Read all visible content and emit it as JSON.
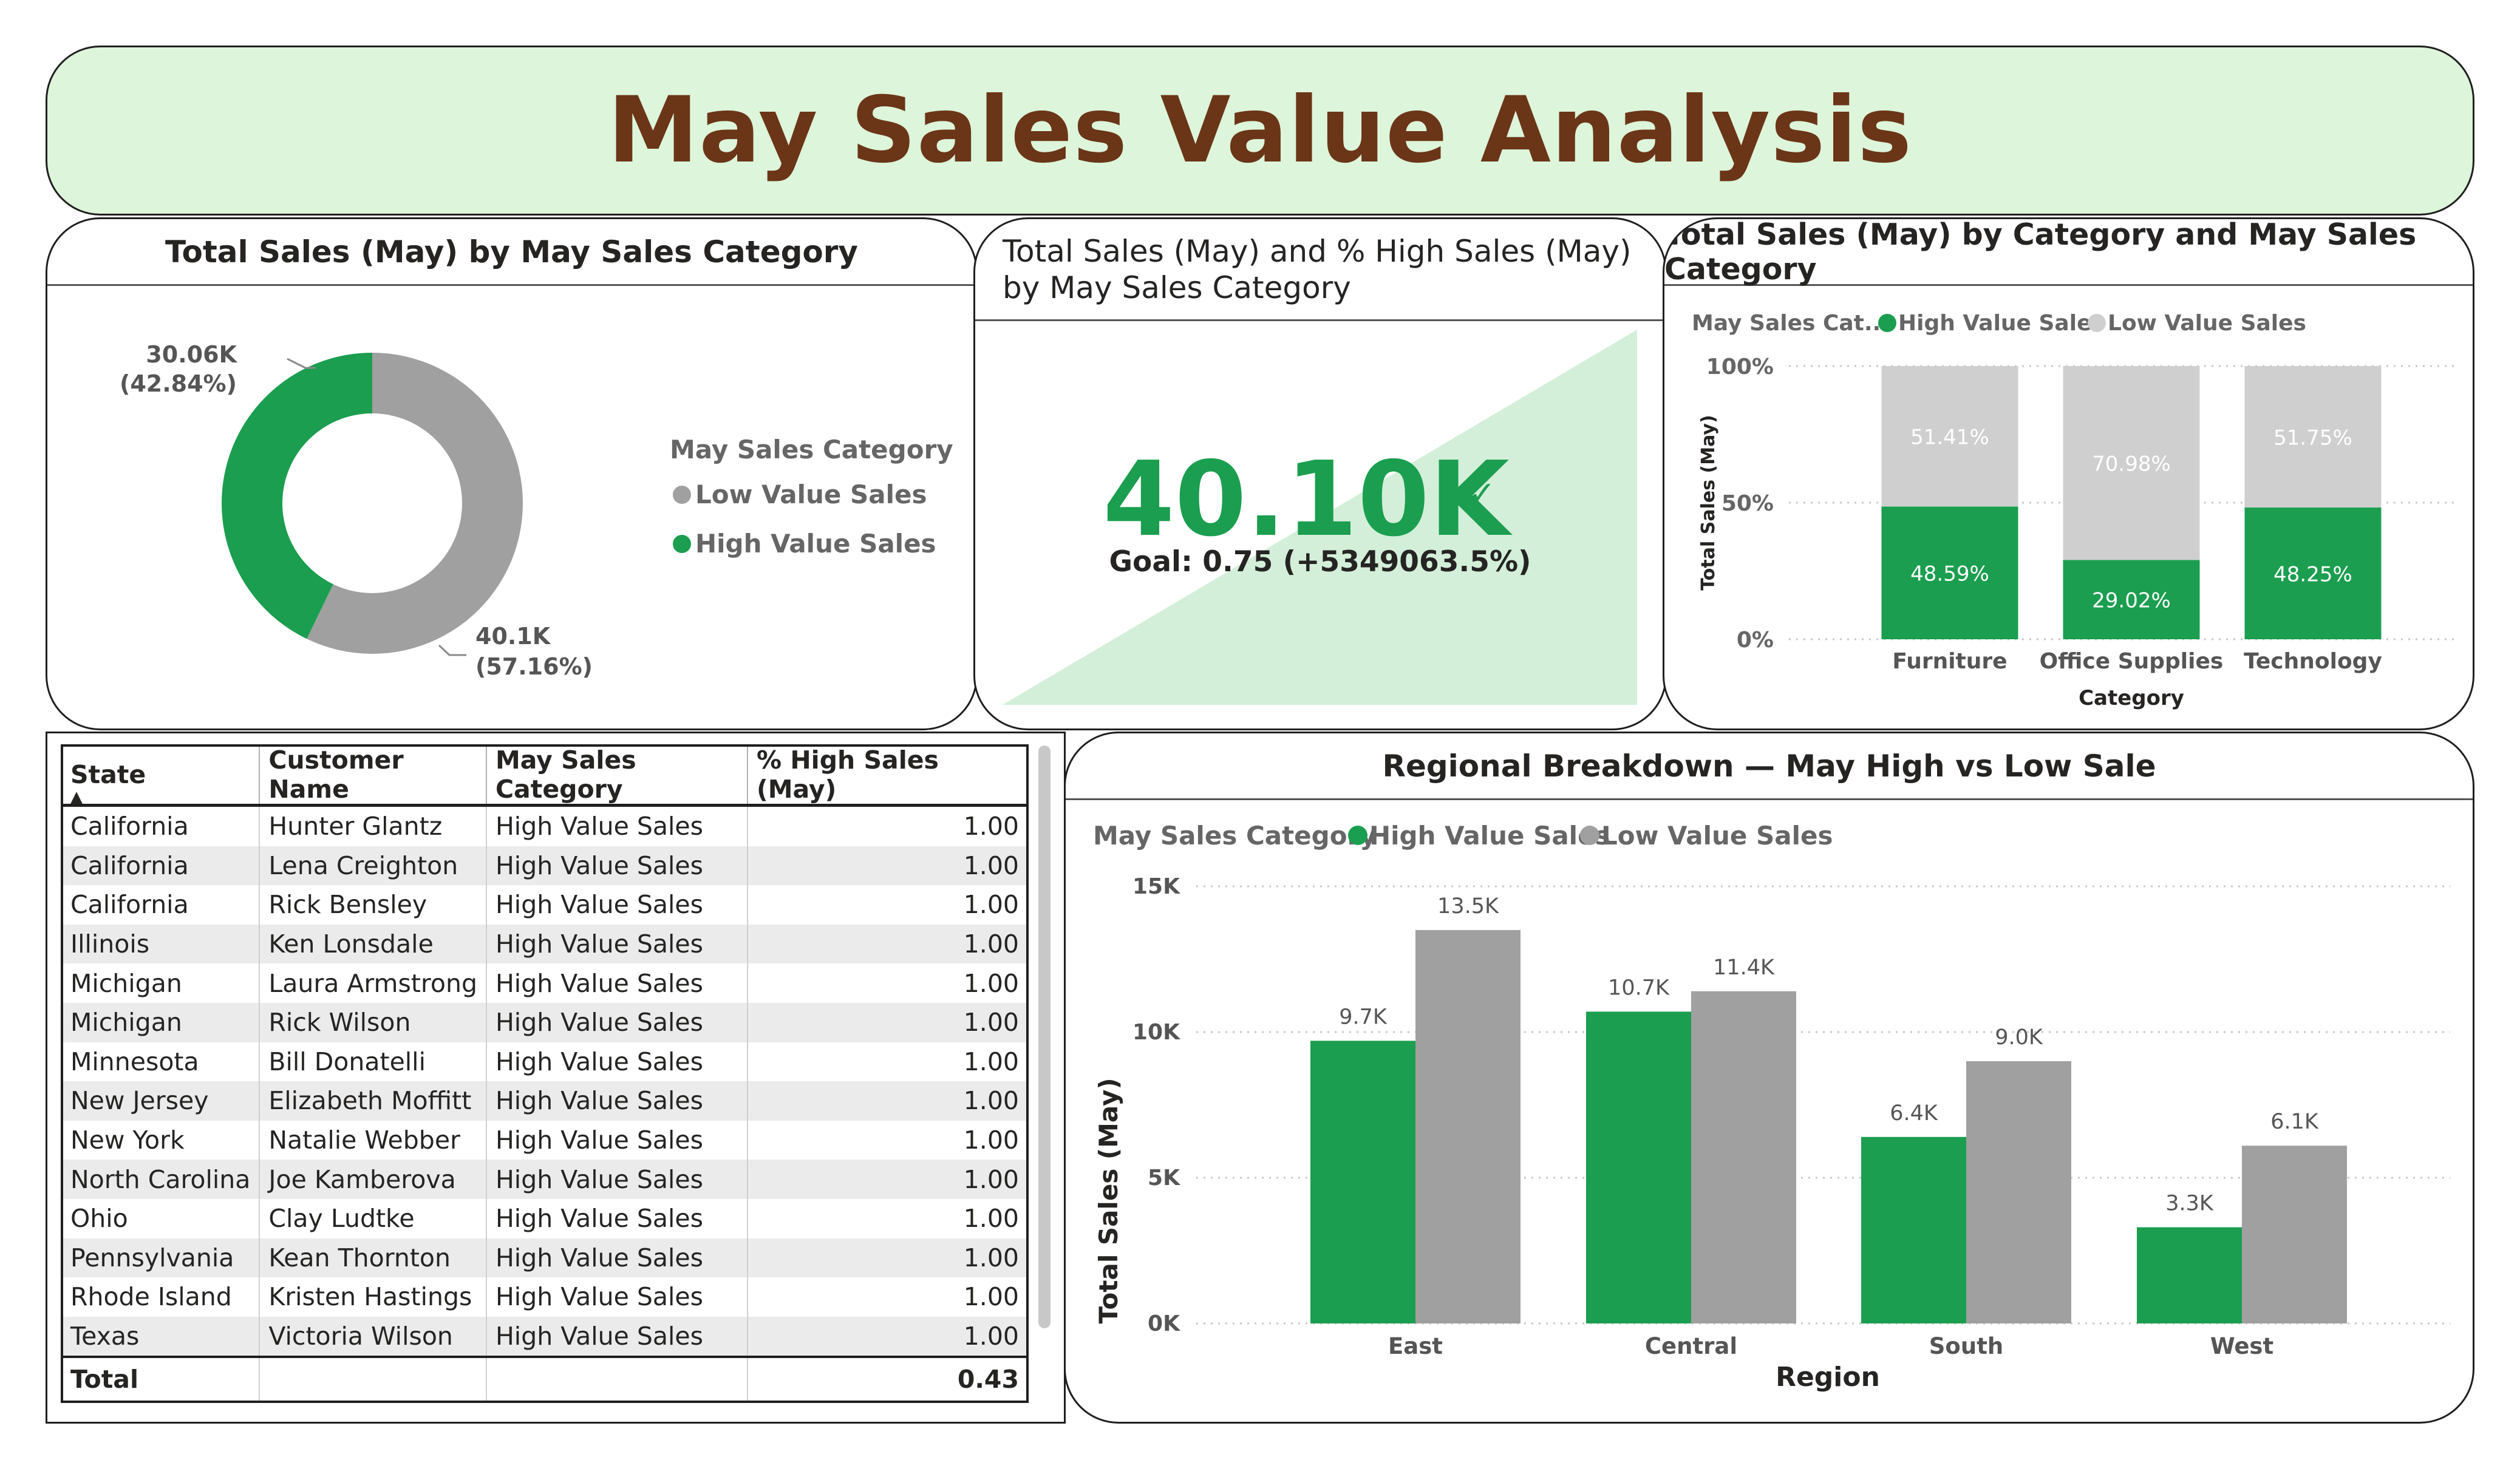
{
  "dashboard": {
    "title": "May Sales Value Analysis"
  },
  "colors": {
    "high": "#1b9e4f",
    "low": "#a0a0a0",
    "low_light": "#cfcfcf",
    "banner": "#ddf5da",
    "title": "#6b3518",
    "kpi_fill": "#d3efd9"
  },
  "donut": {
    "title": "Total Sales (May) by May Sales Category",
    "legend_title": "May Sales Category",
    "legend": [
      "Low Value Sales",
      "High Value Sales"
    ],
    "label_high_value": "30.06K",
    "label_high_pct": "(42.84%)",
    "label_low_value": "40.1K",
    "label_low_pct": "(57.16%)"
  },
  "kpi": {
    "title": "Total Sales (May) and % High Sales (May) by May Sales Category",
    "value": "40.10K",
    "check": "✓",
    "goal": "Goal: 0.75 (+5349063.5%)"
  },
  "stacked": {
    "title": "Total Sales (May) by Category and May Sales Category",
    "legend_title": "May Sales Cat...",
    "legend": [
      "High Value Sales",
      "Low Value Sales"
    ],
    "ylabel": "Total Sales (May)",
    "xlabel": "Category",
    "yticks": [
      "100%",
      "50%",
      "0%"
    ]
  },
  "table": {
    "columns": [
      "State",
      "Customer Name",
      "May Sales Category",
      "% High Sales (May)"
    ],
    "sort_icon": "▲",
    "rows": [
      [
        "California",
        "Hunter Glantz",
        "High Value Sales",
        "1.00"
      ],
      [
        "California",
        "Lena Creighton",
        "High Value Sales",
        "1.00"
      ],
      [
        "California",
        "Rick Bensley",
        "High Value Sales",
        "1.00"
      ],
      [
        "Illinois",
        "Ken Lonsdale",
        "High Value Sales",
        "1.00"
      ],
      [
        "Michigan",
        "Laura Armstrong",
        "High Value Sales",
        "1.00"
      ],
      [
        "Michigan",
        "Rick Wilson",
        "High Value Sales",
        "1.00"
      ],
      [
        "Minnesota",
        "Bill Donatelli",
        "High Value Sales",
        "1.00"
      ],
      [
        "New Jersey",
        "Elizabeth Moffitt",
        "High Value Sales",
        "1.00"
      ],
      [
        "New York",
        "Natalie Webber",
        "High Value Sales",
        "1.00"
      ],
      [
        "North Carolina",
        "Joe Kamberova",
        "High Value Sales",
        "1.00"
      ],
      [
        "Ohio",
        "Clay Ludtke",
        "High Value Sales",
        "1.00"
      ],
      [
        "Pennsylvania",
        "Kean Thornton",
        "High Value Sales",
        "1.00"
      ],
      [
        "Rhode Island",
        "Kristen Hastings",
        "High Value Sales",
        "1.00"
      ],
      [
        "Texas",
        "Victoria Wilson",
        "High Value Sales",
        "1.00"
      ]
    ],
    "total": [
      "Total",
      "",
      "",
      "0.43"
    ]
  },
  "regional": {
    "title": "Regional Breakdown — May High vs Low Sale",
    "legend_title": "May Sales Category",
    "legend": [
      "High Value Sales",
      "Low Value Sales"
    ],
    "ylabel": "Total Sales (May)",
    "xlabel": "Region",
    "yticks": [
      "15K",
      "10K",
      "5K",
      "0K"
    ]
  },
  "chart_data": [
    {
      "type": "pie",
      "title": "Total Sales (May) by May Sales Category",
      "categories": [
        "Low Value Sales",
        "High Value Sales"
      ],
      "values": [
        40100,
        30060
      ],
      "percentages": [
        57.16,
        42.84
      ],
      "legend": "right"
    },
    {
      "type": "bar",
      "stacked": true,
      "title": "Total Sales (May) by Category and May Sales Category",
      "categories": [
        "Furniture",
        "Office Supplies",
        "Technology"
      ],
      "series": [
        {
          "name": "High Value Sales",
          "values": [
            48.59,
            29.02,
            48.25
          ],
          "labels": [
            "48.59%",
            "29.02%",
            "48.25%"
          ]
        },
        {
          "name": "Low Value Sales",
          "values": [
            51.41,
            70.98,
            51.75
          ],
          "labels": [
            "51.41%",
            "70.98%",
            "51.75%"
          ]
        }
      ],
      "xlabel": "Category",
      "ylabel": "Total Sales (May)",
      "ylim": [
        0,
        100
      ],
      "grid": true,
      "legend": "top-left"
    },
    {
      "type": "bar",
      "title": "Regional Breakdown — May High vs Low Sale",
      "categories": [
        "East",
        "Central",
        "South",
        "West"
      ],
      "series": [
        {
          "name": "High Value Sales",
          "values": [
            9700,
            10700,
            6400,
            3300
          ],
          "labels": [
            "9.7K",
            "10.7K",
            "6.4K",
            "3.3K"
          ]
        },
        {
          "name": "Low Value Sales",
          "values": [
            13500,
            11400,
            9000,
            6100
          ],
          "labels": [
            "13.5K",
            "11.4K",
            "9.0K",
            "6.1K"
          ]
        }
      ],
      "xlabel": "Region",
      "ylabel": "Total Sales (May)",
      "ylim": [
        0,
        15000
      ],
      "grid": true,
      "legend": "top-left"
    }
  ]
}
